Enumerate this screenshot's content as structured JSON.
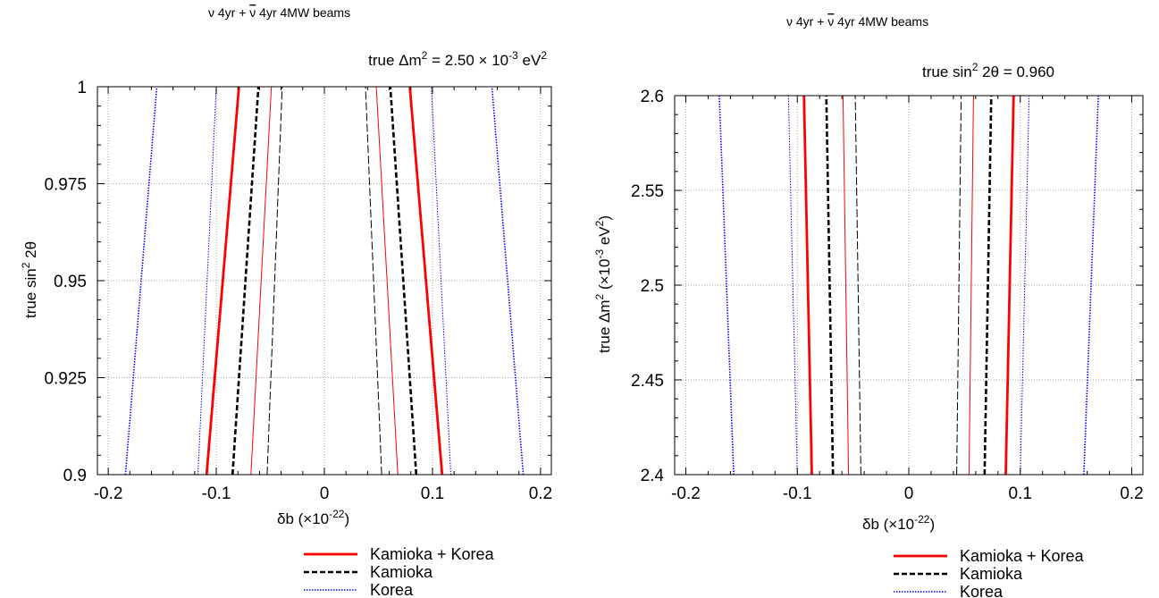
{
  "chart_data": [
    {
      "type": "line",
      "title": "ν 4yr + ν̄ 4yr 4MW beams",
      "title_parts": [
        "ν 4yr + ",
        "ν",
        " 4yr 4MW beams"
      ],
      "subtitle_parts": [
        "true Δm",
        "2",
        " = 2.50 × 10",
        "-3",
        " eV",
        "2"
      ],
      "xlabel_parts": [
        "δb  (×10",
        "-22",
        ")"
      ],
      "ylabel_parts": [
        "true sin",
        "2",
        " 2θ"
      ],
      "xlim": [
        -0.21,
        0.21
      ],
      "ylim": [
        0.9,
        1.0
      ],
      "xticks": [
        -0.2,
        -0.1,
        0,
        0.1,
        0.2
      ],
      "xtick_labels": [
        "-0.2",
        "-0.1",
        "0",
        "0.1",
        "0.2"
      ],
      "yticks": [
        0.9,
        0.925,
        0.95,
        0.975,
        1.0
      ],
      "ytick_labels": [
        "0.9",
        "0.925",
        "0.95",
        "0.975",
        "1"
      ],
      "grid": true,
      "series": [
        {
          "name": "Kamioka + Korea",
          "style": "kk-outer",
          "x": [
            -0.109,
            -0.079
          ],
          "y": [
            0.9,
            1.0
          ]
        },
        {
          "name": "Kamioka + Korea",
          "style": "kk-outer",
          "x": [
            0.109,
            0.079
          ],
          "y": [
            0.9,
            1.0
          ]
        },
        {
          "name": "Kamioka + Korea",
          "style": "kk-inner",
          "x": [
            -0.068,
            -0.049
          ],
          "y": [
            0.9,
            1.0
          ]
        },
        {
          "name": "Kamioka + Korea",
          "style": "kk-inner",
          "x": [
            0.068,
            0.048
          ],
          "y": [
            0.9,
            1.0
          ]
        },
        {
          "name": "Kamioka",
          "style": "k-outer",
          "x": [
            -0.085,
            -0.061
          ],
          "y": [
            0.9,
            1.0
          ]
        },
        {
          "name": "Kamioka",
          "style": "k-outer",
          "x": [
            0.085,
            0.061
          ],
          "y": [
            0.9,
            1.0
          ]
        },
        {
          "name": "Kamioka",
          "style": "k-inner",
          "x": [
            -0.053,
            -0.039
          ],
          "y": [
            0.9,
            1.0
          ]
        },
        {
          "name": "Kamioka",
          "style": "k-inner",
          "x": [
            0.053,
            0.038
          ],
          "y": [
            0.9,
            1.0
          ]
        },
        {
          "name": "Korea",
          "style": "ko-outer",
          "x": [
            -0.184,
            -0.155
          ],
          "y": [
            0.9,
            1.0
          ]
        },
        {
          "name": "Korea",
          "style": "ko-outer",
          "x": [
            0.184,
            0.155
          ],
          "y": [
            0.9,
            1.0
          ]
        },
        {
          "name": "Korea",
          "style": "ko-inner",
          "x": [
            -0.117,
            -0.1
          ],
          "y": [
            0.9,
            1.0
          ]
        },
        {
          "name": "Korea",
          "style": "ko-inner",
          "x": [
            0.117,
            0.099
          ],
          "y": [
            0.9,
            1.0
          ]
        }
      ]
    },
    {
      "type": "line",
      "title": "ν 4yr + ν̄ 4yr 4MW beams",
      "title_parts": [
        "ν 4yr + ",
        "ν",
        " 4yr 4MW beams"
      ],
      "subtitle_parts": [
        "true sin",
        "2",
        " 2θ = 0.960"
      ],
      "xlabel_parts": [
        "δb  (×10",
        "-22",
        ")"
      ],
      "ylabel_parts": [
        "true Δm",
        "2",
        " (×10",
        "-3",
        " eV",
        "2",
        ")"
      ],
      "xlim": [
        -0.21,
        0.21
      ],
      "ylim": [
        2.4,
        2.6
      ],
      "xticks": [
        -0.2,
        -0.1,
        0,
        0.1,
        0.2
      ],
      "xtick_labels": [
        "-0.2",
        "-0.1",
        "0",
        "0.1",
        "0.2"
      ],
      "yticks": [
        2.4,
        2.45,
        2.5,
        2.55,
        2.6
      ],
      "ytick_labels": [
        "2.4",
        "2.45",
        "2.5",
        "2.55",
        "2.6"
      ],
      "grid": true,
      "series": [
        {
          "name": "Kamioka + Korea",
          "style": "kk-outer",
          "x": [
            -0.087,
            -0.094
          ],
          "y": [
            2.4,
            2.6
          ]
        },
        {
          "name": "Kamioka + Korea",
          "style": "kk-outer",
          "x": [
            0.087,
            0.094
          ],
          "y": [
            2.4,
            2.6
          ]
        },
        {
          "name": "Kamioka + Korea",
          "style": "kk-inner",
          "x": [
            -0.054,
            -0.059
          ],
          "y": [
            2.4,
            2.6
          ]
        },
        {
          "name": "Kamioka + Korea",
          "style": "kk-inner",
          "x": [
            0.054,
            0.058
          ],
          "y": [
            2.4,
            2.6
          ]
        },
        {
          "name": "Kamioka",
          "style": "k-outer",
          "x": [
            -0.068,
            -0.074
          ],
          "y": [
            2.4,
            2.6
          ]
        },
        {
          "name": "Kamioka",
          "style": "k-outer",
          "x": [
            0.068,
            0.074
          ],
          "y": [
            2.4,
            2.6
          ]
        },
        {
          "name": "Kamioka",
          "style": "k-inner",
          "x": [
            -0.043,
            -0.048
          ],
          "y": [
            2.4,
            2.6
          ]
        },
        {
          "name": "Kamioka",
          "style": "k-inner",
          "x": [
            0.043,
            0.047
          ],
          "y": [
            2.4,
            2.6
          ]
        },
        {
          "name": "Korea",
          "style": "ko-outer",
          "x": [
            -0.157,
            -0.17
          ],
          "y": [
            2.4,
            2.6
          ]
        },
        {
          "name": "Korea",
          "style": "ko-outer",
          "x": [
            0.157,
            0.17
          ],
          "y": [
            2.4,
            2.6
          ]
        },
        {
          "name": "Korea",
          "style": "ko-inner",
          "x": [
            -0.1,
            -0.108
          ],
          "y": [
            2.4,
            2.6
          ]
        },
        {
          "name": "Korea",
          "style": "ko-inner",
          "x": [
            0.1,
            0.108
          ],
          "y": [
            2.4,
            2.6
          ]
        }
      ]
    }
  ],
  "legend": [
    {
      "label": "Kamioka + Korea",
      "color": "#ff0000",
      "dash": "solid"
    },
    {
      "label": "Kamioka",
      "color": "#000000",
      "dash": "dashed"
    },
    {
      "label": "Korea",
      "color": "#0000ff",
      "dash": "dotted"
    }
  ],
  "colors": {
    "kamioka_korea": "#ff0000",
    "kamioka": "#000000",
    "korea": "#0000ff",
    "grid": "#888888"
  }
}
